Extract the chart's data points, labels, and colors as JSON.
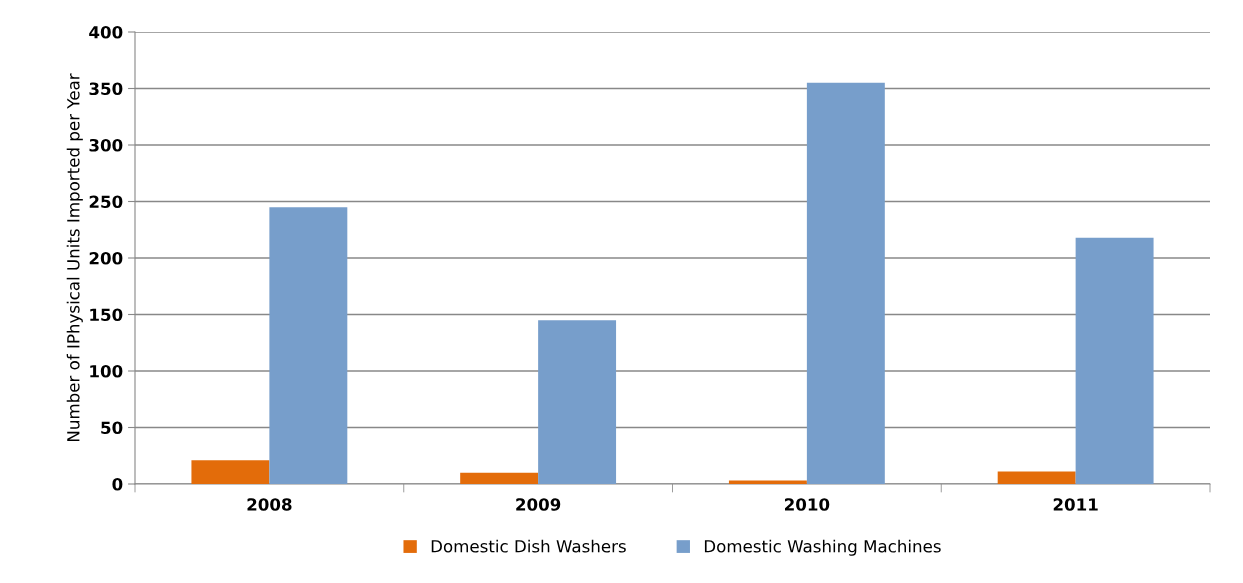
{
  "chart_data": {
    "type": "bar",
    "ylabel": "Number of IPhysical Units Imported per Year",
    "categories": [
      "2008",
      "2009",
      "2010",
      "2011"
    ],
    "series": [
      {
        "name": "Domestic Dish Washers",
        "color": "#e36c0a",
        "values": [
          21,
          10,
          3,
          11
        ]
      },
      {
        "name": "Domestic Washing Machines",
        "color": "#779ecb",
        "values": [
          245,
          145,
          355,
          218
        ]
      }
    ],
    "ylim": [
      0,
      400
    ],
    "yticks": [
      0,
      50,
      100,
      150,
      200,
      250,
      300,
      350,
      400
    ],
    "grid": "y",
    "legend": "bottom"
  }
}
